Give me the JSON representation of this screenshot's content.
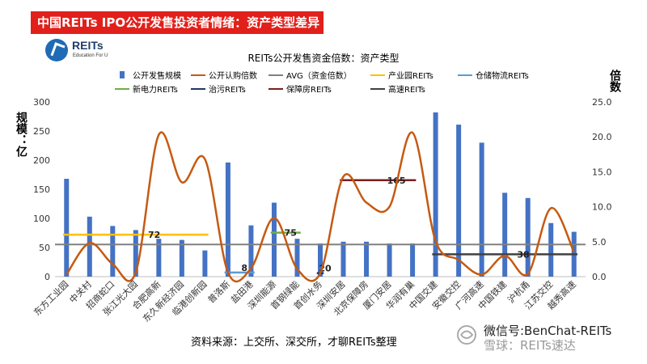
{
  "banner": {
    "title": "中国REITs IPO公开发售投资者情绪：资产类型差异"
  },
  "logo": {
    "name": "REITs",
    "tagline": "Education For U"
  },
  "footer": {
    "source": "资料来源：上交所、深交所，才聊REITs整理"
  },
  "watermark": {
    "wechat": "微信号:BenChat-REITs",
    "snowball": "雪球：REITs速达"
  },
  "chart_data": {
    "type": "bar",
    "title": "REITs公开发售资金倍数：资产类型",
    "ylabel": "规模：亿",
    "y2label": "倍数",
    "ylim": [
      0,
      300
    ],
    "y2lim": [
      0,
      25
    ],
    "yticks": [
      "0",
      "50",
      "100",
      "150",
      "200",
      "250",
      "300"
    ],
    "y2ticks": [
      "0.0",
      "5.0",
      "10.0",
      "15.0",
      "20.0",
      "25.0"
    ],
    "categories": [
      "东方工业园",
      "中关村",
      "招商蛇口",
      "张江光大园",
      "合肥高新",
      "东久新经济园",
      "临港创新园",
      "普洛斯",
      "盐田港",
      "深圳能源",
      "首钢绿能",
      "首创水务",
      "深圳安居",
      "北京保障房",
      "厦门安居",
      "华润有巢",
      "中国交建",
      "安徽交控",
      "广河高速",
      "中国铁建",
      "沪杭甬",
      "江苏交控",
      "越秀高速"
    ],
    "bar_series": {
      "name": "公开发售规模",
      "color": "#4472c4",
      "values": [
        168,
        103,
        87,
        80,
        65,
        63,
        45,
        196,
        88,
        127,
        65,
        57,
        60,
        60,
        57,
        57,
        282,
        261,
        230,
        144,
        135,
        92,
        77
      ]
    },
    "line_series": {
      "name": "公开认购倍数",
      "color": "#c55a11",
      "values": [
        0.3,
        4.8,
        1.8,
        0.6,
        20.3,
        13.5,
        16.8,
        0.6,
        1.2,
        8.4,
        1.1,
        0.5,
        14.3,
        10.6,
        10.0,
        20.6,
        5.1,
        2.4,
        0.3,
        3.0,
        0.4,
        9.8,
        3.5
      ]
    },
    "avg_line": {
      "name": "AVG（资金倍数）",
      "color": "#808080",
      "value": 4.6
    },
    "group_lines": [
      {
        "name": "产业园REITs",
        "color": "#ffc000",
        "value": 6.0,
        "from": 0,
        "to": 6,
        "label": "72"
      },
      {
        "name": "仓储物流REITs",
        "color": "#5b9bd5",
        "value": 0.6,
        "from": 7,
        "to": 8,
        "label": "8"
      },
      {
        "name": "新电力REITs",
        "color": "#70ad47",
        "value": 6.3,
        "from": 9,
        "to": 10,
        "label": "75"
      },
      {
        "name": "治污REITs",
        "color": "#1f3864",
        "value": 0.5,
        "from": 11,
        "to": 11,
        "label": "20"
      },
      {
        "name": "保障房REITs",
        "color": "#7b1e1e",
        "value": 13.8,
        "from": 12,
        "to": 15,
        "label": "165"
      },
      {
        "name": "高速REITs",
        "color": "#404040",
        "value": 3.2,
        "from": 16,
        "to": 22,
        "label": "38"
      }
    ],
    "legend": {
      "placement": "top",
      "rows": [
        [
          "公开发售规模",
          "公开认购倍数",
          "AVG（资金倍数）",
          "产业园REITs",
          "仓储物流REITs"
        ],
        [
          "新电力REITs",
          "治污REITs",
          "保障房REITs",
          "高速REITs"
        ]
      ]
    }
  }
}
